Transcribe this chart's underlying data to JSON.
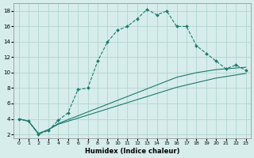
{
  "xlabel": "Humidex (Indice chaleur)",
  "bg_color": "#d6edeb",
  "grid_color": "#b0d5d0",
  "line_color": "#1a7a6e",
  "line1_x": [
    0,
    1,
    2,
    3,
    4,
    5,
    6,
    7,
    8,
    9,
    10,
    11,
    12,
    13,
    14,
    15,
    16,
    17,
    18,
    19,
    20,
    21,
    22,
    23
  ],
  "line1_y": [
    4.0,
    3.7,
    2.0,
    2.5,
    3.8,
    4.8,
    7.8,
    8.0,
    11.5,
    14.0,
    15.5,
    16.0,
    17.0,
    18.2,
    17.5,
    18.0,
    16.0,
    16.0,
    13.5,
    12.5,
    11.5,
    10.5,
    11.0,
    10.3
  ],
  "line2_x": [
    0,
    1,
    2,
    3,
    4,
    5,
    6,
    7,
    8,
    9,
    10,
    11,
    12,
    13,
    14,
    15,
    16,
    17,
    18,
    19,
    20,
    21,
    22,
    23
  ],
  "line2_y": [
    4.0,
    3.7,
    2.1,
    2.6,
    3.4,
    3.9,
    4.4,
    4.9,
    5.4,
    5.9,
    6.4,
    6.9,
    7.4,
    7.9,
    8.4,
    8.9,
    9.4,
    9.7,
    10.0,
    10.2,
    10.4,
    10.5,
    10.6,
    10.7
  ],
  "line3_x": [
    0,
    1,
    2,
    3,
    4,
    5,
    6,
    7,
    8,
    9,
    10,
    11,
    12,
    13,
    14,
    15,
    16,
    17,
    18,
    19,
    20,
    21,
    22,
    23
  ],
  "line3_y": [
    4.0,
    3.7,
    2.1,
    2.6,
    3.3,
    3.7,
    4.1,
    4.5,
    4.9,
    5.3,
    5.7,
    6.1,
    6.5,
    6.9,
    7.3,
    7.7,
    8.1,
    8.4,
    8.7,
    9.0,
    9.3,
    9.5,
    9.7,
    9.9
  ],
  "xticks": [
    0,
    1,
    2,
    3,
    4,
    5,
    6,
    7,
    8,
    9,
    10,
    11,
    12,
    13,
    14,
    15,
    16,
    17,
    18,
    19,
    20,
    21,
    22,
    23
  ],
  "yticks": [
    2,
    4,
    6,
    8,
    10,
    12,
    14,
    16,
    18
  ],
  "xlim": [
    -0.5,
    23.5
  ],
  "ylim": [
    1.5,
    19.0
  ]
}
